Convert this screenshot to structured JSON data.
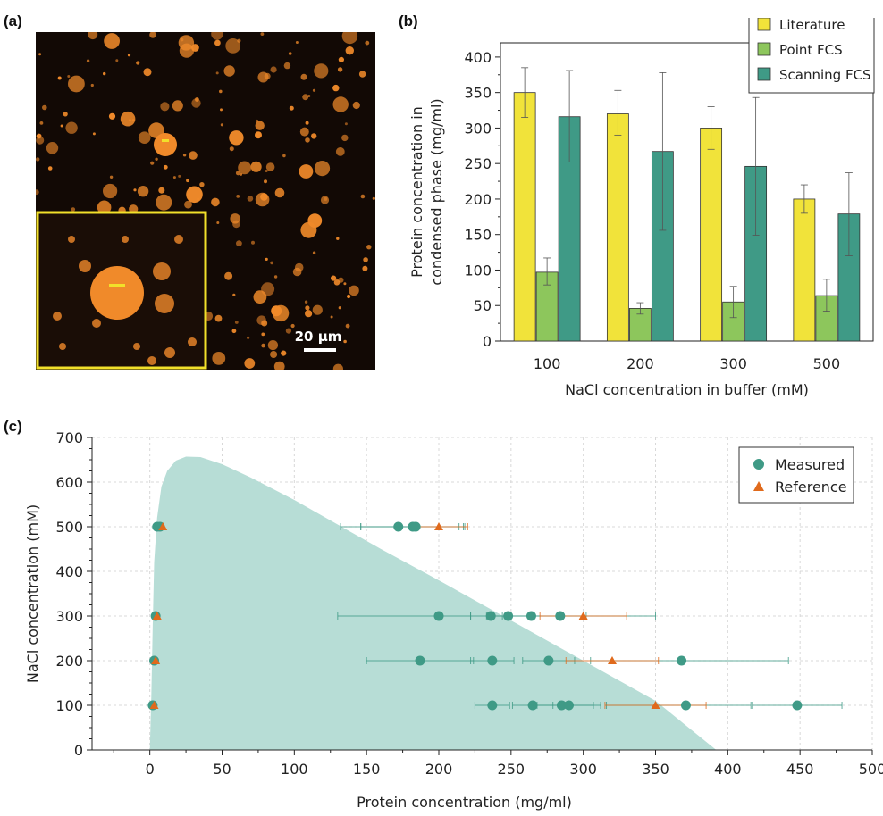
{
  "panels": {
    "a": "(a)",
    "b": "(b)",
    "c": "(c)"
  },
  "micrograph": {
    "scale_bar_label": "20 µm",
    "colors": {
      "background": "#120905",
      "droplet": "#f08a2a",
      "inset_border": "#f1e02a",
      "marker": "#f1e02a"
    }
  },
  "chart_data": [
    {
      "panel": "b",
      "type": "bar",
      "xlabel": "NaCl concentration in buffer (mM)",
      "ylabel": "Protein concentration in condensed phase (mg/ml)",
      "categories": [
        "100",
        "200",
        "300",
        "500"
      ],
      "ylim": [
        0,
        420
      ],
      "yticks": [
        0,
        50,
        100,
        150,
        200,
        250,
        300,
        350,
        400
      ],
      "legend_position": "top-right",
      "series": [
        {
          "name": "Literature",
          "color": "#f1e33a",
          "values": [
            350,
            320,
            300,
            200
          ],
          "err_low": [
            35,
            30,
            30,
            20
          ],
          "err_high": [
            35,
            33,
            30,
            20
          ]
        },
        {
          "name": "Point FCS",
          "color": "#8dc65c",
          "values": [
            97,
            46,
            55,
            64
          ],
          "err_low": [
            18,
            8,
            22,
            22
          ],
          "err_high": [
            20,
            8,
            22,
            23
          ]
        },
        {
          "name": "Scanning FCS",
          "color": "#3f9a86",
          "values": [
            316,
            267,
            246,
            179
          ],
          "err_low": [
            64,
            111,
            97,
            59
          ],
          "err_high": [
            65,
            111,
            97,
            58
          ]
        }
      ]
    },
    {
      "panel": "c",
      "type": "scatter",
      "xlabel": "Protein concentration (mg/ml)",
      "ylabel": "NaCl concentration (mM)",
      "xlim": [
        -40,
        500
      ],
      "ylim": [
        0,
        700
      ],
      "xticks": [
        0,
        50,
        100,
        150,
        200,
        250,
        300,
        350,
        400,
        450,
        500
      ],
      "yticks": [
        0,
        100,
        200,
        300,
        400,
        500,
        600,
        700
      ],
      "grid": true,
      "legend_position": "top-right",
      "phase_boundary": {
        "color": "#b7ddd6",
        "x": [
          0,
          1,
          2,
          3,
          5,
          8,
          12,
          18,
          25,
          35,
          50,
          70,
          100,
          130,
          160,
          200,
          250,
          300,
          350,
          392
        ],
        "y": [
          0,
          120,
          280,
          420,
          520,
          590,
          625,
          648,
          657,
          656,
          640,
          610,
          560,
          505,
          450,
          380,
          290,
          200,
          110,
          0
        ]
      },
      "series": [
        {
          "name": "Measured",
          "marker": "circle",
          "color": "#3f9a86",
          "points": [
            {
              "x": 5,
              "y": 500
            },
            {
              "x": 7,
              "y": 500
            },
            {
              "x": 172,
              "y": 500,
              "xerr": [
                40,
                45
              ]
            },
            {
              "x": 182,
              "y": 500,
              "xerr": [
                36,
                32
              ]
            },
            {
              "x": 184,
              "y": 500,
              "xerr": [
                38,
                34
              ]
            },
            {
              "x": 4,
              "y": 300
            },
            {
              "x": 200,
              "y": 300,
              "xerr": [
                70,
                22
              ]
            },
            {
              "x": 236,
              "y": 300,
              "xerr": [
                14,
                14
              ]
            },
            {
              "x": 248,
              "y": 300,
              "xerr": [
                15,
                15
              ]
            },
            {
              "x": 264,
              "y": 300,
              "xerr": [
                20,
                86
              ]
            },
            {
              "x": 284,
              "y": 300,
              "xerr": [
                18,
                18
              ]
            },
            {
              "x": 3,
              "y": 200
            },
            {
              "x": 187,
              "y": 200,
              "xerr": [
                37,
                37
              ]
            },
            {
              "x": 237,
              "y": 200,
              "xerr": [
                15,
                15
              ]
            },
            {
              "x": 276,
              "y": 200,
              "xerr": [
                18,
                18
              ]
            },
            {
              "x": 368,
              "y": 200,
              "xerr": [
                63,
                74
              ]
            },
            {
              "x": 2,
              "y": 100
            },
            {
              "x": 237,
              "y": 100,
              "xerr": [
                12,
                12
              ]
            },
            {
              "x": 265,
              "y": 100,
              "xerr": [
                14,
                14
              ]
            },
            {
              "x": 285,
              "y": 100,
              "xerr": [
                22,
                22
              ]
            },
            {
              "x": 290,
              "y": 100,
              "xerr": [
                22,
                22
              ]
            },
            {
              "x": 371,
              "y": 100,
              "xerr": [
                55,
                45
              ]
            },
            {
              "x": 448,
              "y": 100,
              "xerr": [
                31,
                31
              ]
            }
          ]
        },
        {
          "name": "Reference",
          "marker": "triangle",
          "color": "#e06a1c",
          "points": [
            {
              "x": 9,
              "y": 500
            },
            {
              "x": 200,
              "y": 500,
              "xerr": [
                20,
                20
              ]
            },
            {
              "x": 5,
              "y": 300
            },
            {
              "x": 300,
              "y": 300,
              "xerr": [
                30,
                30
              ]
            },
            {
              "x": 4,
              "y": 200
            },
            {
              "x": 320,
              "y": 200,
              "xerr": [
                32,
                32
              ]
            },
            {
              "x": 3,
              "y": 100
            },
            {
              "x": 350,
              "y": 100,
              "xerr": [
                35,
                35
              ]
            }
          ]
        }
      ]
    }
  ]
}
